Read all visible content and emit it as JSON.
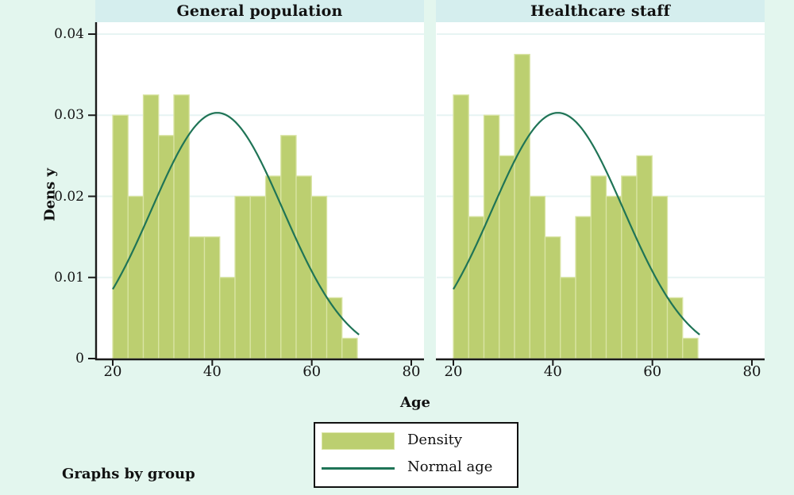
{
  "labels": {
    "y": "Dens y",
    "x": "Age",
    "note": "Graphs by group"
  },
  "legend": {
    "items": [
      {
        "label": "Density",
        "type": "swatch"
      },
      {
        "label": "Normal age",
        "type": "line"
      }
    ]
  },
  "colors": {
    "background": "#e3f6ee",
    "title_band": "#d5eeee",
    "plot_background": "#ffffff",
    "gridline": "#e7f4f3",
    "bar_fill": "#bccf70",
    "bar_stroke": "#d9e4a4",
    "curve": "#1f7456",
    "axis": "#1b1b1b",
    "text": "#111111"
  },
  "chart_data": [
    {
      "type": "bar",
      "subtype": "histogram-with-normal-curve",
      "title": "General population",
      "xlabel": "Age",
      "ylabel": "Dens y",
      "xlim": [
        16.5,
        82
      ],
      "ylim": [
        0,
        0.042
      ],
      "xticks": [
        20,
        40,
        60,
        80
      ],
      "xtick_labels": [
        "20",
        "40",
        "60",
        "80"
      ],
      "yticks": [
        0,
        0.01,
        0.02,
        0.03,
        0.04
      ],
      "ytick_labels": [
        "0",
        "0.01",
        "0.02",
        "0.03",
        "0.04"
      ],
      "grid": true,
      "bin_start": 20,
      "bin_width_years": 3.072,
      "bar_heights": [
        0.03,
        0.02,
        0.0325,
        0.0275,
        0.0325,
        0.015,
        0.015,
        0.01,
        0.02,
        0.02,
        0.0225,
        0.0275,
        0.0225,
        0.02,
        0.0075,
        0.0025
      ],
      "normal_curve": {
        "name": "Normal age",
        "mean": 41,
        "sd": 13.2,
        "peak_density": 0.0303,
        "x_range": [
          20,
          69.5
        ]
      }
    },
    {
      "type": "bar",
      "subtype": "histogram-with-normal-curve",
      "title": "Healthcare staff",
      "xlabel": "Age",
      "ylabel": "Dens y",
      "xlim": [
        16.5,
        82
      ],
      "ylim": [
        0,
        0.042
      ],
      "xticks": [
        20,
        40,
        60,
        80
      ],
      "xtick_labels": [
        "20",
        "40",
        "60",
        "80"
      ],
      "yticks": [
        0,
        0.01,
        0.02,
        0.03,
        0.04
      ],
      "ytick_labels": [
        "0",
        "0.01",
        "0.02",
        "0.03",
        "0.04"
      ],
      "grid": true,
      "bin_start": 20,
      "bin_width_years": 3.072,
      "bar_heights": [
        0.0325,
        0.0175,
        0.03,
        0.025,
        0.0375,
        0.02,
        0.015,
        0.01,
        0.0175,
        0.0225,
        0.02,
        0.0225,
        0.025,
        0.02,
        0.0075,
        0.0025
      ],
      "normal_curve": {
        "name": "Normal age",
        "mean": 41,
        "sd": 13.2,
        "peak_density": 0.0303,
        "x_range": [
          20,
          69.5
        ]
      }
    }
  ]
}
